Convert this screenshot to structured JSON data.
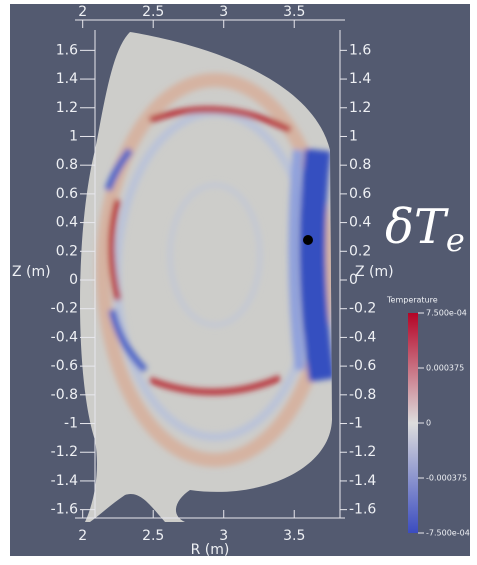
{
  "chart_data": {
    "type": "field",
    "x_label": "R (m)",
    "y_label": "Z (m)",
    "xlim": [
      1.91,
      3.86
    ],
    "ylim": [
      -1.7,
      1.7
    ],
    "xticks": [
      2,
      2.5,
      3,
      3.5
    ],
    "yticks": [
      1.6,
      1.4,
      1.2,
      1,
      0.8,
      0.6,
      0.4,
      0.2,
      0,
      -0.2,
      -0.4,
      -0.6,
      -0.8,
      -1,
      -1.2,
      -1.4,
      -1.6
    ],
    "annotation": {
      "text": "δT",
      "subscript": "e"
    },
    "colorbar": {
      "title": "Temperature",
      "clim": [
        -0.00075,
        0.00075
      ],
      "colors": [
        "#3b4cc0",
        "#dddddd",
        "#b40426"
      ],
      "ticks": [
        {
          "value": 0.00075,
          "label": "7.500e-04"
        },
        0.000375,
        0,
        -0.000375,
        {
          "value": -0.00075,
          "label": "-7.500e-04"
        }
      ]
    }
  }
}
